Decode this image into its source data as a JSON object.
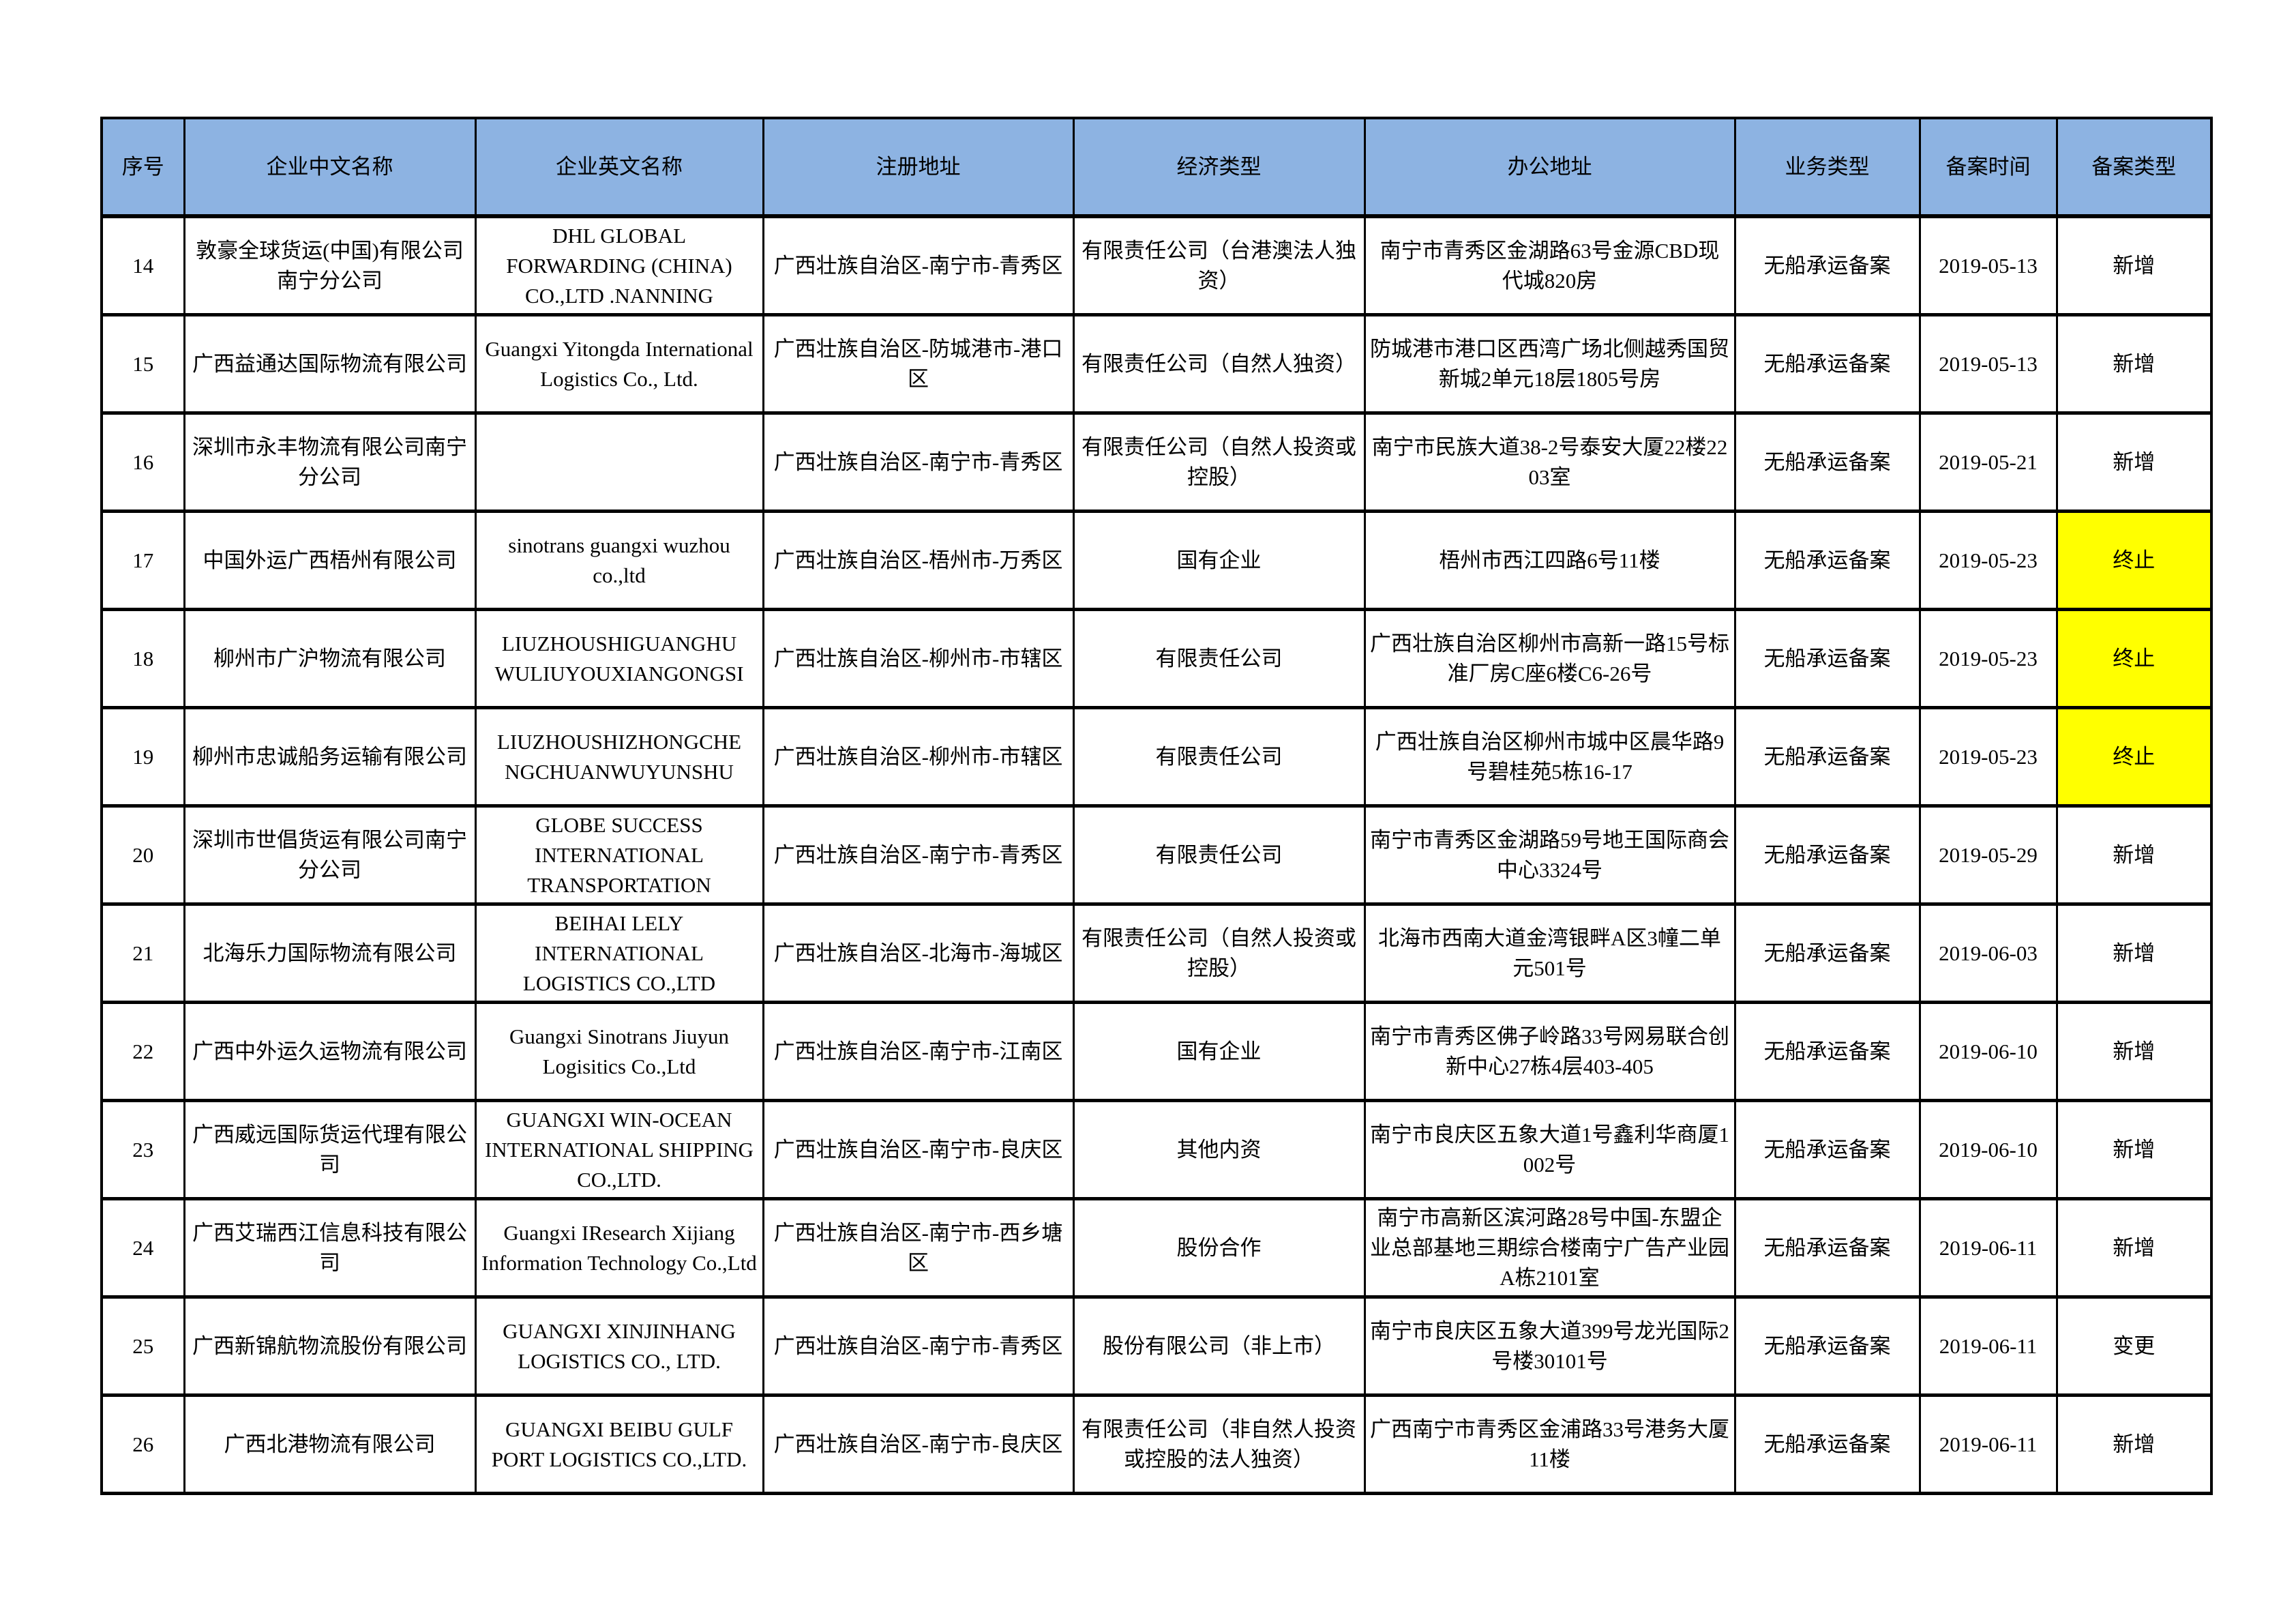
{
  "headers": [
    "序号",
    "企业中文名称",
    "企业英文名称",
    "注册地址",
    "经济类型",
    "办公地址",
    "业务类型",
    "备案时间",
    "备案类型"
  ],
  "highlight_color": "#ffff00",
  "header_color": "#8db3e2",
  "rows": [
    {
      "no": "14",
      "cn": "敦豪全球货运(中国)有限公司南宁分公司",
      "en": "DHL GLOBAL FORWARDING (CHINA) CO.,LTD .NANNING",
      "reg": "广西壮族自治区-南宁市-青秀区",
      "econ": "有限责任公司（台港澳法人独资）",
      "office": "南宁市青秀区金湖路63号金源CBD现代城820房",
      "biz": "无船承运备案",
      "date": "2019-05-13",
      "type": "新增",
      "highlight": false
    },
    {
      "no": "15",
      "cn": "广西益通达国际物流有限公司",
      "en": "Guangxi Yitongda International Logistics Co., Ltd.",
      "reg": "广西壮族自治区-防城港市-港口区",
      "econ": "有限责任公司（自然人独资）",
      "office": "防城港市港口区西湾广场北侧越秀国贸新城2单元18层1805号房",
      "biz": "无船承运备案",
      "date": "2019-05-13",
      "type": "新增",
      "highlight": false
    },
    {
      "no": "16",
      "cn": "深圳市永丰物流有限公司南宁分公司",
      "en": "",
      "reg": "广西壮族自治区-南宁市-青秀区",
      "econ": "有限责任公司（自然人投资或控股）",
      "office": "南宁市民族大道38-2号泰安大厦22楼2203室",
      "biz": "无船承运备案",
      "date": "2019-05-21",
      "type": "新增",
      "highlight": false
    },
    {
      "no": "17",
      "cn": "中国外运广西梧州有限公司",
      "en": "sinotrans guangxi wuzhou co.,ltd",
      "reg": "广西壮族自治区-梧州市-万秀区",
      "econ": "国有企业",
      "office": "梧州市西江四路6号11楼",
      "biz": "无船承运备案",
      "date": "2019-05-23",
      "type": "终止",
      "highlight": true
    },
    {
      "no": "18",
      "cn": "柳州市广沪物流有限公司",
      "en": "LIUZHOUSHIGUANGHU WULIUYOUXIANGONGSI",
      "reg": "广西壮族自治区-柳州市-市辖区",
      "econ": "有限责任公司",
      "office": "广西壮族自治区柳州市高新一路15号标准厂房C座6楼C6-26号",
      "biz": "无船承运备案",
      "date": "2019-05-23",
      "type": "终止",
      "highlight": true
    },
    {
      "no": "19",
      "cn": "柳州市忠诚船务运输有限公司",
      "en": "LIUZHOUSHIZHONGCHE NGCHUANWUYUNSHU",
      "reg": "广西壮族自治区-柳州市-市辖区",
      "econ": "有限责任公司",
      "office": "广西壮族自治区柳州市城中区晨华路9号碧桂苑5栋16-17",
      "biz": "无船承运备案",
      "date": "2019-05-23",
      "type": "终止",
      "highlight": true
    },
    {
      "no": "20",
      "cn": "深圳市世倡货运有限公司南宁分公司",
      "en": "GLOBE SUCCESS INTERNATIONAL TRANSPORTATION",
      "reg": "广西壮族自治区-南宁市-青秀区",
      "econ": "有限责任公司",
      "office": "南宁市青秀区金湖路59号地王国际商会中心3324号",
      "biz": "无船承运备案",
      "date": "2019-05-29",
      "type": "新增",
      "highlight": false
    },
    {
      "no": "21",
      "cn": "北海乐力国际物流有限公司",
      "en": "BEIHAI LELY INTERNATIONAL LOGISTICS CO.,LTD",
      "reg": "广西壮族自治区-北海市-海城区",
      "econ": "有限责任公司（自然人投资或控股）",
      "office": "北海市西南大道金湾银畔A区3幢二单元501号",
      "biz": "无船承运备案",
      "date": "2019-06-03",
      "type": "新增",
      "highlight": false
    },
    {
      "no": "22",
      "cn": "广西中外运久运物流有限公司",
      "en": "Guangxi Sinotrans Jiuyun Logisitics Co.,Ltd",
      "reg": "广西壮族自治区-南宁市-江南区",
      "econ": "国有企业",
      "office": "南宁市青秀区佛子岭路33号网易联合创新中心27栋4层403-405",
      "biz": "无船承运备案",
      "date": "2019-06-10",
      "type": "新增",
      "highlight": false
    },
    {
      "no": "23",
      "cn": "广西威远国际货运代理有限公司",
      "en": "GUANGXI WIN-OCEAN INTERNATIONAL SHIPPING CO.,LTD.",
      "reg": "广西壮族自治区-南宁市-良庆区",
      "econ": "其他内资",
      "office": "南宁市良庆区五象大道1号鑫利华商厦1002号",
      "biz": "无船承运备案",
      "date": "2019-06-10",
      "type": "新增",
      "highlight": false
    },
    {
      "no": "24",
      "cn": "广西艾瑞西江信息科技有限公司",
      "en": "Guangxi IResearch Xijiang Information Technology Co.,Ltd",
      "reg": "广西壮族自治区-南宁市-西乡塘区",
      "econ": "股份合作",
      "office": "南宁市高新区滨河路28号中国-东盟企业总部基地三期综合楼南宁广告产业园A栋2101室",
      "biz": "无船承运备案",
      "date": "2019-06-11",
      "type": "新增",
      "highlight": false
    },
    {
      "no": "25",
      "cn": "广西新锦航物流股份有限公司",
      "en": "GUANGXI XINJINHANG LOGISTICS CO., LTD.",
      "reg": "广西壮族自治区-南宁市-青秀区",
      "econ": "股份有限公司（非上市）",
      "office": "南宁市良庆区五象大道399号龙光国际2号楼30101号",
      "biz": "无船承运备案",
      "date": "2019-06-11",
      "type": "变更",
      "highlight": false
    },
    {
      "no": "26",
      "cn": "广西北港物流有限公司",
      "en": "GUANGXI BEIBU GULF PORT LOGISTICS CO.,LTD.",
      "reg": "广西壮族自治区-南宁市-良庆区",
      "econ": "有限责任公司（非自然人投资或控股的法人独资）",
      "office": "广西南宁市青秀区金浦路33号港务大厦11楼",
      "biz": "无船承运备案",
      "date": "2019-06-11",
      "type": "新增",
      "highlight": false
    }
  ]
}
